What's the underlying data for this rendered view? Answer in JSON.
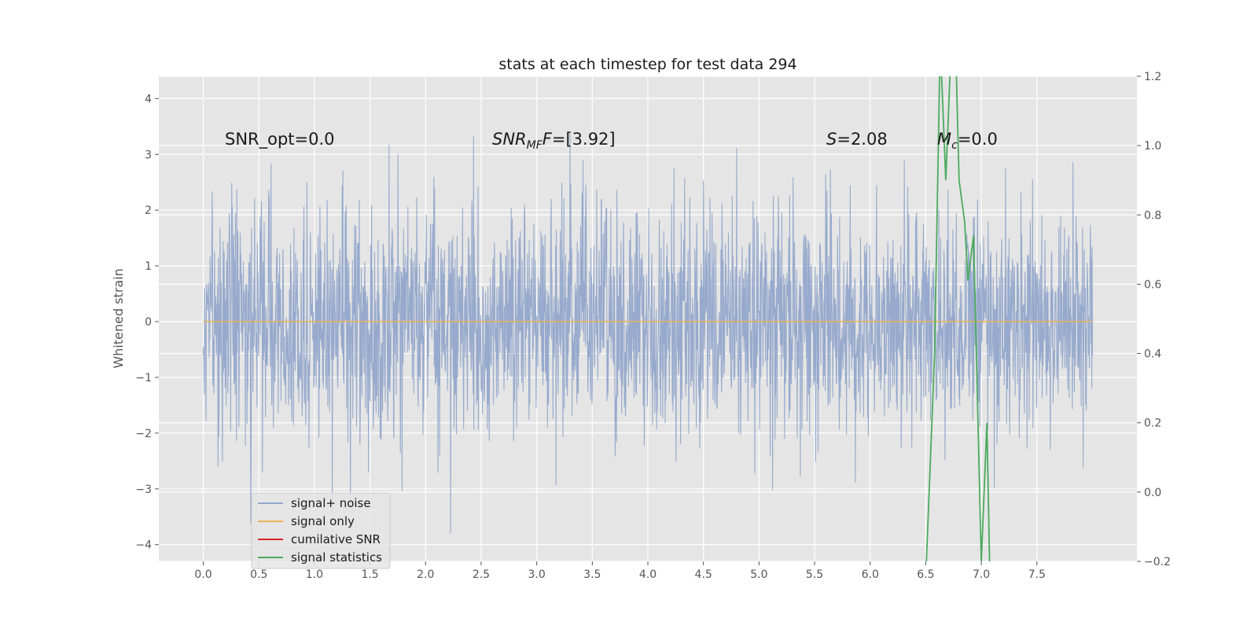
{
  "chart_data": {
    "type": "line",
    "title": "stats at each timestep for test data 294",
    "xlabel": "",
    "ylabel": "Whitened strain",
    "y2label": "",
    "xlim": [
      -0.4,
      8.4
    ],
    "ylim": [
      -4.3,
      4.4
    ],
    "y2lim": [
      -0.2,
      1.2
    ],
    "grid": true,
    "legend_position": "lower-left",
    "x_ticks": [
      "0.0",
      "0.5",
      "1.0",
      "1.5",
      "2.0",
      "2.5",
      "3.0",
      "3.5",
      "4.0",
      "4.5",
      "5.0",
      "5.5",
      "6.0",
      "6.5",
      "7.0",
      "7.5"
    ],
    "y_ticks": [
      "−4",
      "−3",
      "−2",
      "−1",
      "0",
      "1",
      "2",
      "3",
      "4"
    ],
    "y2_ticks": [
      "−0.2",
      "0.0",
      "0.2",
      "0.4",
      "0.6",
      "0.8",
      "1.0",
      "1.2"
    ],
    "series": [
      {
        "name": "signal+ noise",
        "color": "#92a7cb",
        "axis": "left",
        "description": "whitened noise, approximately Gaussian, sd ~1.0, from t=0.0 to t=8.0",
        "x_range": [
          0.0,
          8.0
        ],
        "sd": 1.0,
        "peak_max": 4.0,
        "peak_min": -3.8
      },
      {
        "name": "signal only",
        "color": "#e9b35b",
        "axis": "left",
        "x": [
          0.0,
          8.0
        ],
        "y": [
          0.0,
          0.0
        ]
      },
      {
        "name": "cumilative SNR",
        "color": "#d62728",
        "axis": "right",
        "x": [],
        "y": []
      },
      {
        "name": "signal statistics",
        "color": "#4caa5e",
        "axis": "right",
        "x": [
          6.5,
          6.58,
          6.63,
          6.68,
          6.72,
          6.76,
          6.8,
          6.85,
          6.88,
          6.93,
          7.0,
          7.05,
          7.08
        ],
        "y": [
          -0.25,
          0.4,
          1.3,
          0.9,
          1.22,
          1.4,
          0.9,
          0.78,
          0.61,
          0.74,
          -0.2,
          0.2,
          -0.3
        ]
      }
    ],
    "annotations": [
      {
        "id": "snr-opt",
        "text": "SNR_opt=0.0",
        "x": 0.2,
        "y": 3.2
      },
      {
        "id": "snr-mf",
        "text": "SNR",
        "sub": "MF",
        "rest": "=[3.92]",
        "x": 2.6,
        "y": 3.2
      },
      {
        "id": "s-stat",
        "text": "S",
        "rest": "=2.08",
        "x": 5.6,
        "y": 3.2
      },
      {
        "id": "mc",
        "text": "M",
        "sub": "c",
        "rest": "=0.0",
        "x": 6.6,
        "y": 3.2
      }
    ],
    "legend": [
      {
        "label": "signal+ noise",
        "color": "#92a7cb"
      },
      {
        "label": "signal only",
        "color": "#e9b35b"
      },
      {
        "label": "cumilative SNR",
        "color": "#d62728"
      },
      {
        "label": "signal statistics",
        "color": "#4caa5e"
      }
    ]
  }
}
